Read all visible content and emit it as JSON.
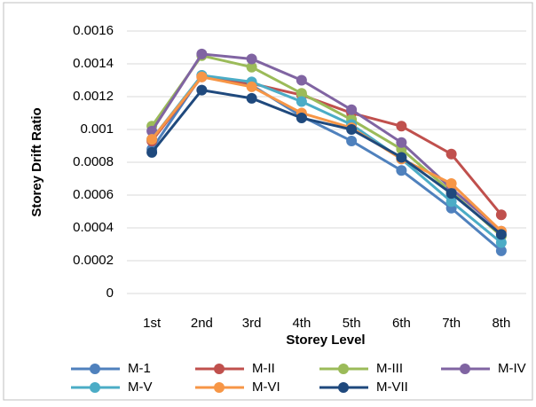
{
  "chart_data": {
    "type": "line",
    "x_label": "Storey Level",
    "y_label": "Storey Drift Ratio",
    "categories": [
      "1st",
      "2nd",
      "3rd",
      "4th",
      "5th",
      "6th",
      "7th",
      "8th"
    ],
    "series": [
      {
        "name": "M-1",
        "color": "#4f81bd",
        "values": [
          0.00088,
          0.00133,
          0.00127,
          0.00108,
          0.00093,
          0.00075,
          0.00052,
          0.00026
        ]
      },
      {
        "name": "M-II",
        "color": "#c0504d",
        "values": [
          0.00093,
          0.00132,
          0.00128,
          0.00121,
          0.0011,
          0.00102,
          0.00085,
          0.00048
        ]
      },
      {
        "name": "M-III",
        "color": "#9bbb59",
        "values": [
          0.00102,
          0.00145,
          0.00138,
          0.00122,
          0.00106,
          0.00088,
          0.00062,
          0.00035
        ]
      },
      {
        "name": "M-IV",
        "color": "#8064a2",
        "values": [
          0.00099,
          0.00146,
          0.00143,
          0.0013,
          0.00112,
          0.00092,
          0.00064,
          0.00038
        ]
      },
      {
        "name": "M-V",
        "color": "#4bacc6",
        "values": [
          0.00094,
          0.00133,
          0.00129,
          0.00117,
          0.00103,
          0.00082,
          0.00056,
          0.00031
        ]
      },
      {
        "name": "M-VI",
        "color": "#f79646",
        "values": [
          0.00094,
          0.00132,
          0.00126,
          0.0011,
          0.00101,
          0.00082,
          0.00067,
          0.00038
        ]
      },
      {
        "name": "M-VII",
        "color": "#1f497d",
        "values": [
          0.00086,
          0.00124,
          0.00119,
          0.00107,
          0.001,
          0.00083,
          0.00061,
          0.00036
        ]
      }
    ],
    "ylim": [
      0,
      0.0016
    ],
    "yticks": [
      0,
      0.0002,
      0.0004,
      0.0006,
      0.0008,
      0.001,
      0.0012,
      0.0014,
      0.0016
    ],
    "grid": true
  }
}
